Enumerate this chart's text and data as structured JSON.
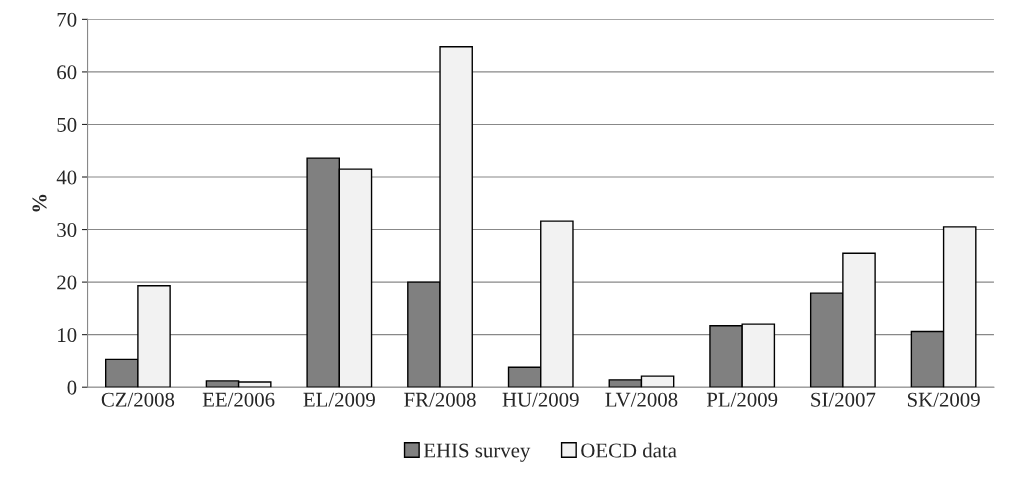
{
  "chart_data": {
    "type": "bar",
    "ylabel": "%",
    "categories": [
      "CZ/2008",
      "EE/2006",
      "EL/2009",
      "FR/2008",
      "HU/2009",
      "LV/2008",
      "PL/2009",
      "SI/2007",
      "SK/2009"
    ],
    "series": [
      {
        "name": "EHIS survey",
        "color": "#808080",
        "values": [
          5.3,
          1.2,
          43.6,
          20.0,
          3.8,
          1.4,
          11.7,
          17.9,
          10.6
        ]
      },
      {
        "name": "OECD data",
        "color": "#f2f2f2",
        "values": [
          19.3,
          1.0,
          41.5,
          64.8,
          31.6,
          2.1,
          12.0,
          25.5,
          30.5
        ]
      }
    ],
    "ylim": [
      0,
      70
    ],
    "yticks": [
      0,
      10,
      20,
      30,
      40,
      50,
      60,
      70
    ],
    "grid": "y",
    "legend": "bottom"
  }
}
